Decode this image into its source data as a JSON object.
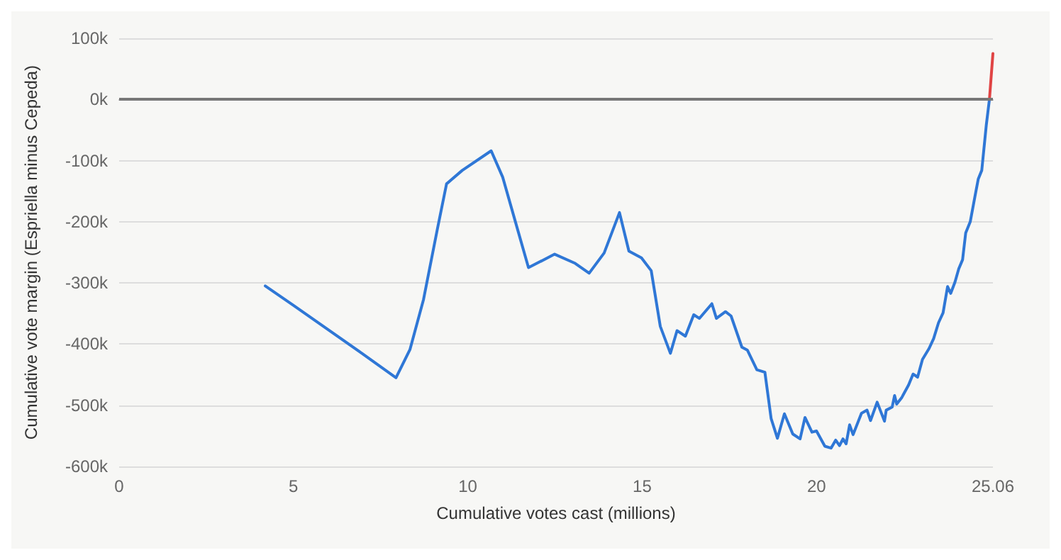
{
  "chart_data": {
    "type": "line",
    "xlabel": "Cumulative votes cast (millions)",
    "ylabel": "Cumulative vote margin (Espriella minus Cepeda)",
    "xlim": [
      0,
      25.06
    ],
    "xticks": [
      0,
      5,
      10,
      15,
      20,
      25.06
    ],
    "ylim": [
      -600000,
      100000
    ],
    "yticks": [
      {
        "value": -600000,
        "label": "-600k"
      },
      {
        "value": -500000,
        "label": "-500k"
      },
      {
        "value": -400000,
        "label": "-400k"
      },
      {
        "value": -300000,
        "label": "-300k"
      },
      {
        "value": -200000,
        "label": "-200k"
      },
      {
        "value": -100000,
        "label": "-100k"
      },
      {
        "value": 0,
        "label": "0k"
      },
      {
        "value": 100000,
        "label": "100k"
      }
    ],
    "grid": "y",
    "marker": "none",
    "line_style": "solid",
    "ref_lines": [
      {
        "axis": "y",
        "value": 0,
        "color": "#777777"
      }
    ],
    "series": [
      {
        "color": "#2f77d6",
        "x": [
          4.19,
          4.98,
          6.96,
          7.94,
          8.34,
          8.73,
          9.13,
          9.39,
          9.84,
          10.67,
          11.0,
          11.42,
          11.74,
          12.49,
          13.08,
          13.48,
          13.91,
          14.35,
          14.62,
          14.98,
          15.26,
          15.52,
          15.81,
          16.0,
          16.24,
          16.48,
          16.64,
          17.0,
          17.13,
          17.39,
          17.55,
          17.86,
          18.02,
          18.29,
          18.52,
          18.7,
          18.88,
          19.08,
          19.32,
          19.53,
          19.67,
          19.87,
          20.0,
          20.24,
          20.42,
          20.55,
          20.66,
          20.76,
          20.85,
          20.95,
          21.05,
          21.29,
          21.45,
          21.55,
          21.74,
          21.95,
          22.0,
          22.17,
          22.24,
          22.3,
          22.44,
          22.64,
          22.77,
          22.9,
          23.04,
          23.23,
          23.36,
          23.5,
          23.63,
          23.76,
          23.85,
          23.97,
          24.08,
          24.19,
          24.28,
          24.41,
          24.54,
          24.64,
          24.74,
          24.87,
          24.96
        ],
        "values": [
          -305000,
          -336000,
          -415000,
          -455000,
          -409000,
          -327000,
          -211000,
          -138000,
          -116000,
          -84000,
          -127000,
          -211000,
          -275000,
          -253000,
          -268000,
          -284000,
          -251000,
          -185000,
          -248000,
          -259000,
          -280000,
          -371000,
          -415000,
          -378000,
          -387000,
          -352000,
          -358000,
          -334000,
          -358000,
          -347000,
          -354000,
          -405000,
          -410000,
          -442000,
          -446000,
          -522000,
          -554000,
          -514000,
          -547000,
          -555000,
          -520000,
          -544000,
          -542000,
          -567000,
          -570000,
          -557000,
          -566000,
          -555000,
          -563000,
          -532000,
          -548000,
          -513000,
          -508000,
          -525000,
          -495000,
          -526000,
          -508000,
          -503000,
          -484000,
          -498000,
          -488000,
          -467000,
          -449000,
          -454000,
          -425000,
          -407000,
          -391000,
          -365000,
          -349000,
          -306000,
          -317000,
          -299000,
          -277000,
          -262000,
          -218000,
          -200000,
          -160000,
          -130000,
          -116000,
          -42000,
          0
        ]
      },
      {
        "color": "#e04444",
        "x": [
          24.96,
          25.06
        ],
        "values": [
          0,
          75000
        ]
      }
    ]
  }
}
